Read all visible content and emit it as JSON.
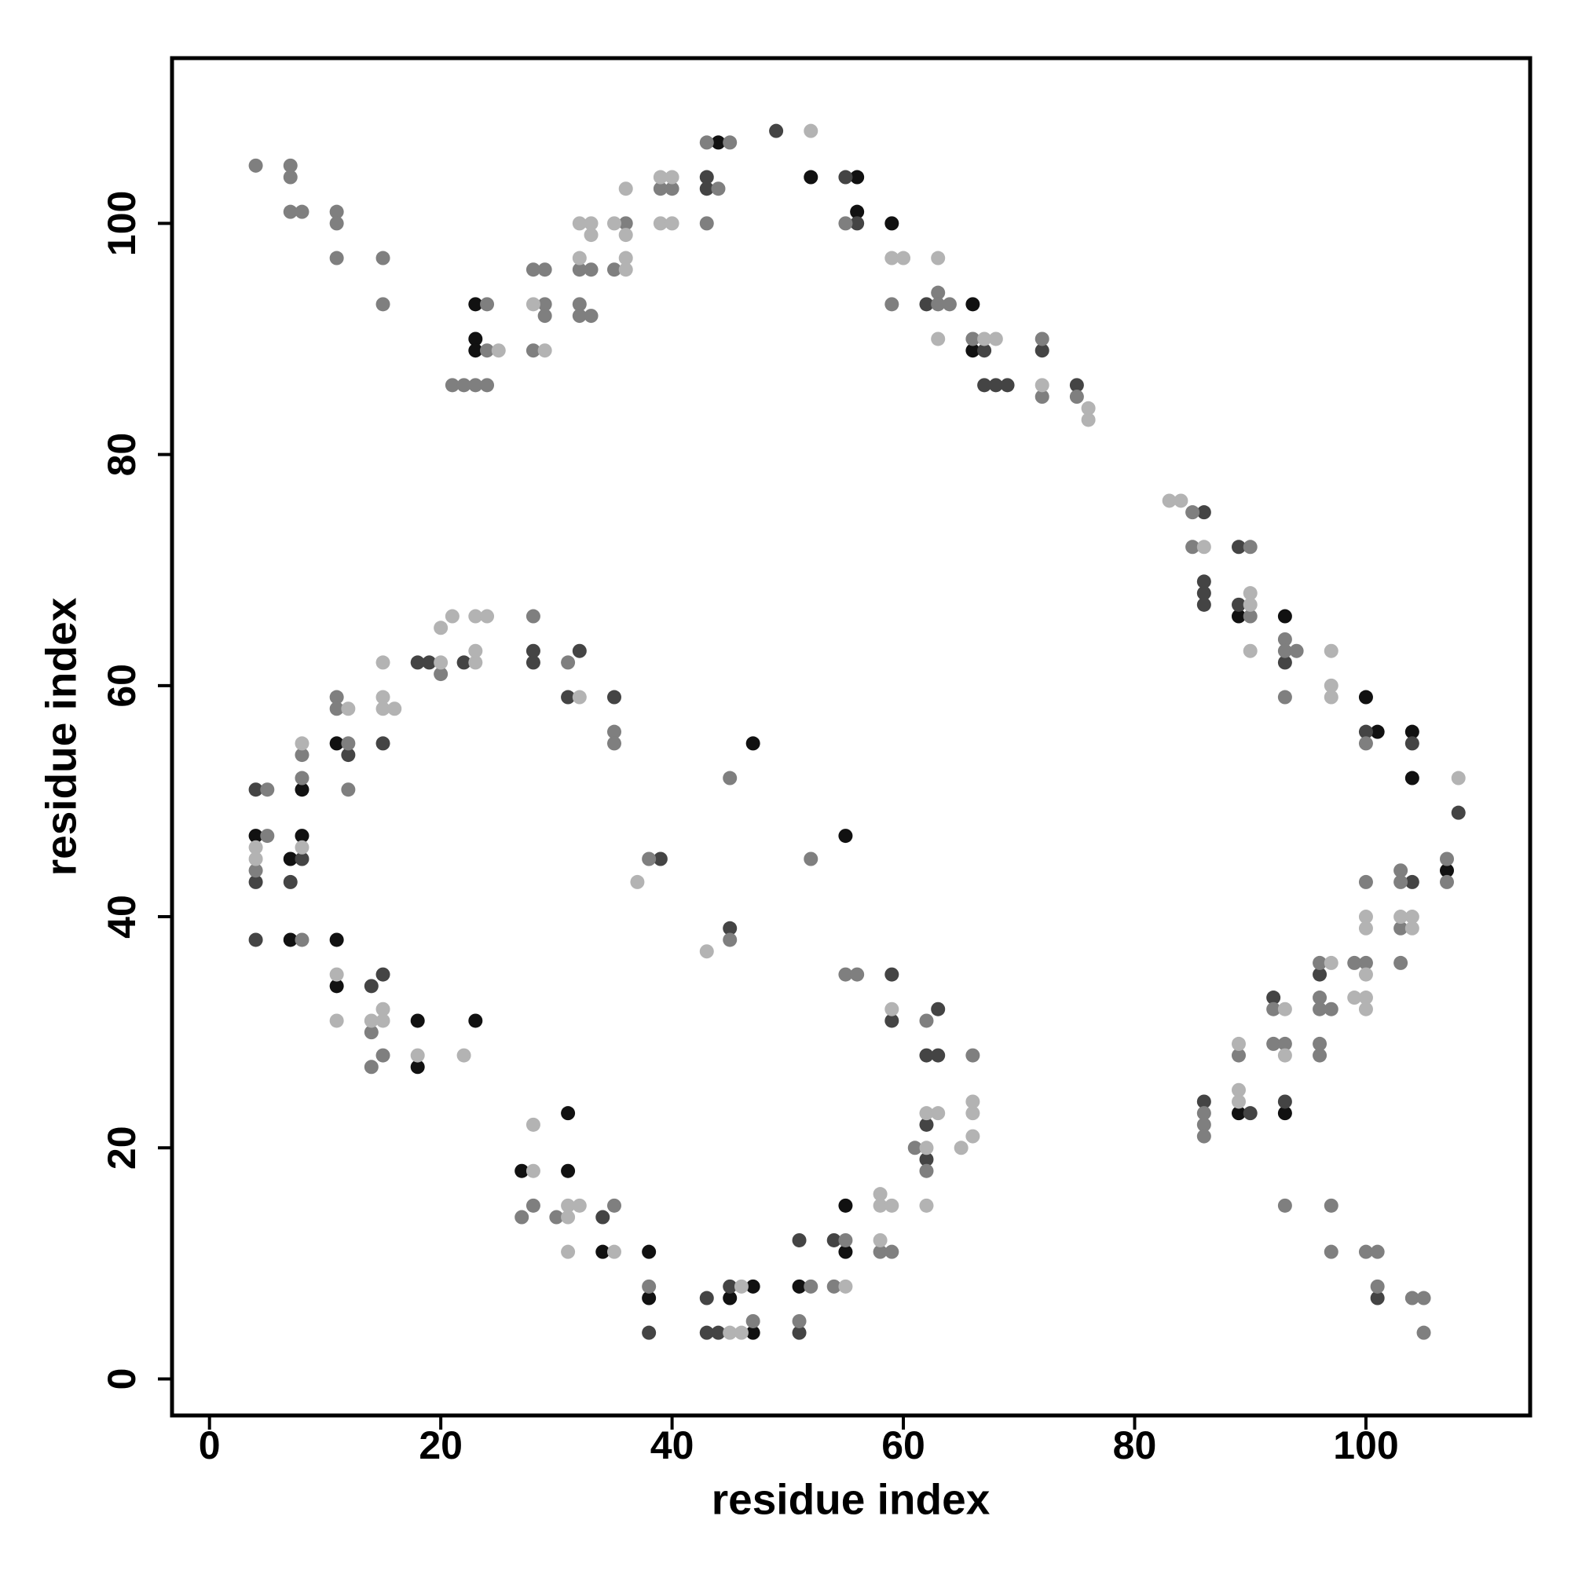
{
  "chart_data": {
    "type": "scatter",
    "xlabel": "residue index",
    "ylabel": "residue index",
    "xlim": [
      -3.24,
      114.2
    ],
    "ylim": [
      -3.16,
      114.3
    ],
    "xticks": [
      0,
      20,
      40,
      60,
      80,
      100
    ],
    "yticks": [
      0,
      20,
      40,
      60,
      80,
      100
    ],
    "series": [
      {
        "color": "#111111",
        "x": [
          23,
          23,
          23,
          44,
          52,
          56,
          56,
          59,
          66,
          66,
          89,
          93,
          100,
          101,
          104,
          104,
          107,
          93,
          89,
          27,
          31,
          31,
          34,
          38,
          38,
          45,
          47,
          47,
          51,
          55,
          55,
          55,
          47,
          4,
          7,
          8,
          7,
          8,
          11,
          11,
          11,
          18,
          18,
          23
        ],
        "values": [
          93,
          90,
          89,
          107,
          104,
          104,
          101,
          100,
          93,
          89,
          66,
          66,
          59,
          56,
          56,
          52,
          44,
          23,
          23,
          18,
          18,
          23,
          11,
          11,
          7,
          7,
          8,
          4,
          8,
          15,
          11,
          47,
          55,
          47,
          45,
          47,
          38,
          51,
          55,
          34,
          38,
          31,
          27,
          31
        ]
      },
      {
        "color": "#444444",
        "x": [
          43,
          43,
          49,
          55,
          56,
          62,
          67,
          67,
          68,
          69,
          72,
          75,
          86,
          86,
          86,
          86,
          89,
          89,
          93,
          100,
          104,
          108,
          104,
          96,
          92,
          93,
          90,
          86,
          101,
          34,
          38,
          43,
          43,
          44,
          45,
          51,
          51,
          54,
          62,
          62,
          63,
          62,
          63,
          59,
          59,
          45,
          39,
          4,
          4,
          4,
          8,
          7,
          12,
          15,
          18,
          19,
          22,
          28,
          28,
          32,
          31,
          35,
          14,
          15
        ],
        "values": [
          104,
          103,
          108,
          104,
          100,
          93,
          89,
          86,
          86,
          86,
          89,
          86,
          75,
          69,
          68,
          67,
          72,
          67,
          62,
          56,
          55,
          49,
          43,
          35,
          33,
          24,
          23,
          24,
          7,
          14,
          4,
          7,
          4,
          4,
          8,
          12,
          4,
          12,
          22,
          19,
          32,
          28,
          28,
          35,
          31,
          39,
          45,
          51,
          43,
          38,
          45,
          43,
          54,
          55,
          62,
          62,
          62,
          63,
          62,
          63,
          59,
          59,
          34,
          35
        ]
      },
      {
        "color": "#7f7f7f",
        "x": [
          4,
          7,
          7,
          7,
          8,
          11,
          11,
          11,
          15,
          15,
          24,
          24,
          21,
          22,
          23,
          24,
          28,
          29,
          29,
          29,
          28,
          32,
          33,
          32,
          32,
          33,
          36,
          35,
          39,
          40,
          43,
          45,
          44,
          43,
          55,
          59,
          63,
          63,
          64,
          66,
          72,
          72,
          75,
          85,
          85,
          90,
          90,
          93,
          93,
          94,
          93,
          100,
          107,
          107,
          103,
          103,
          103,
          103,
          100,
          99,
          100,
          96,
          96,
          96,
          97,
          96,
          96,
          92,
          92,
          93,
          93,
          89,
          86,
          86,
          86,
          97,
          97,
          100,
          101,
          101,
          104,
          105,
          105,
          27,
          28,
          30,
          35,
          38,
          47,
          52,
          51,
          55,
          54,
          58,
          59,
          61,
          62,
          62,
          66,
          55,
          56,
          52,
          45,
          45,
          38,
          5,
          5,
          4,
          8,
          8,
          8,
          11,
          11,
          12,
          12,
          20,
          28,
          31,
          35,
          35,
          14,
          14,
          15
        ],
        "values": [
          105,
          105,
          104,
          101,
          101,
          101,
          100,
          97,
          97,
          93,
          93,
          89,
          86,
          86,
          86,
          86,
          96,
          96,
          93,
          92,
          89,
          96,
          96,
          93,
          92,
          92,
          100,
          96,
          103,
          103,
          107,
          107,
          103,
          100,
          100,
          93,
          94,
          93,
          93,
          90,
          90,
          85,
          85,
          75,
          72,
          72,
          66,
          64,
          63,
          63,
          59,
          55,
          45,
          43,
          44,
          43,
          39,
          36,
          43,
          36,
          36,
          36,
          33,
          32,
          32,
          29,
          28,
          32,
          29,
          29,
          15,
          28,
          23,
          22,
          21,
          15,
          11,
          11,
          11,
          8,
          7,
          7,
          4,
          14,
          15,
          14,
          15,
          8,
          5,
          8,
          5,
          12,
          8,
          11,
          11,
          20,
          18,
          31,
          28,
          35,
          35,
          45,
          52,
          38,
          45,
          51,
          47,
          44,
          38,
          54,
          52,
          59,
          58,
          55,
          51,
          61,
          66,
          62,
          56,
          55,
          30,
          27,
          28
        ]
      },
      {
        "color": "#b3b3b3",
        "x": [
          25,
          28,
          29,
          32,
          33,
          33,
          32,
          35,
          36,
          36,
          36,
          36,
          39,
          40,
          39,
          40,
          52,
          59,
          60,
          63,
          63,
          67,
          68,
          72,
          76,
          76,
          83,
          84,
          86,
          90,
          90,
          90,
          97,
          97,
          97,
          108,
          103,
          104,
          104,
          100,
          100,
          100,
          99,
          100,
          100,
          97,
          93,
          93,
          89,
          89,
          89,
          28,
          28,
          31,
          32,
          31,
          31,
          35,
          46,
          45,
          46,
          55,
          58,
          58,
          59,
          58,
          62,
          63,
          62,
          62,
          65,
          66,
          66,
          66,
          59,
          43,
          37,
          4,
          4,
          8,
          8,
          12,
          15,
          15,
          15,
          16,
          20,
          20,
          21,
          23,
          23,
          23,
          24,
          32,
          11,
          11,
          15,
          14,
          15,
          18,
          22
        ],
        "values": [
          89,
          93,
          89,
          100,
          100,
          99,
          97,
          100,
          99,
          103,
          97,
          96,
          104,
          104,
          100,
          100,
          108,
          97,
          97,
          97,
          90,
          90,
          90,
          86,
          84,
          83,
          76,
          76,
          72,
          68,
          67,
          63,
          63,
          60,
          59,
          52,
          40,
          40,
          39,
          40,
          39,
          35,
          33,
          33,
          32,
          36,
          32,
          28,
          29,
          25,
          24,
          18,
          22,
          15,
          15,
          14,
          11,
          11,
          8,
          4,
          4,
          8,
          16,
          15,
          15,
          12,
          23,
          23,
          20,
          15,
          20,
          24,
          23,
          21,
          32,
          37,
          43,
          46,
          45,
          46,
          55,
          58,
          62,
          59,
          58,
          58,
          62,
          65,
          66,
          62,
          63,
          66,
          66,
          59,
          35,
          31,
          32,
          31,
          31,
          28,
          28
        ]
      }
    ]
  }
}
